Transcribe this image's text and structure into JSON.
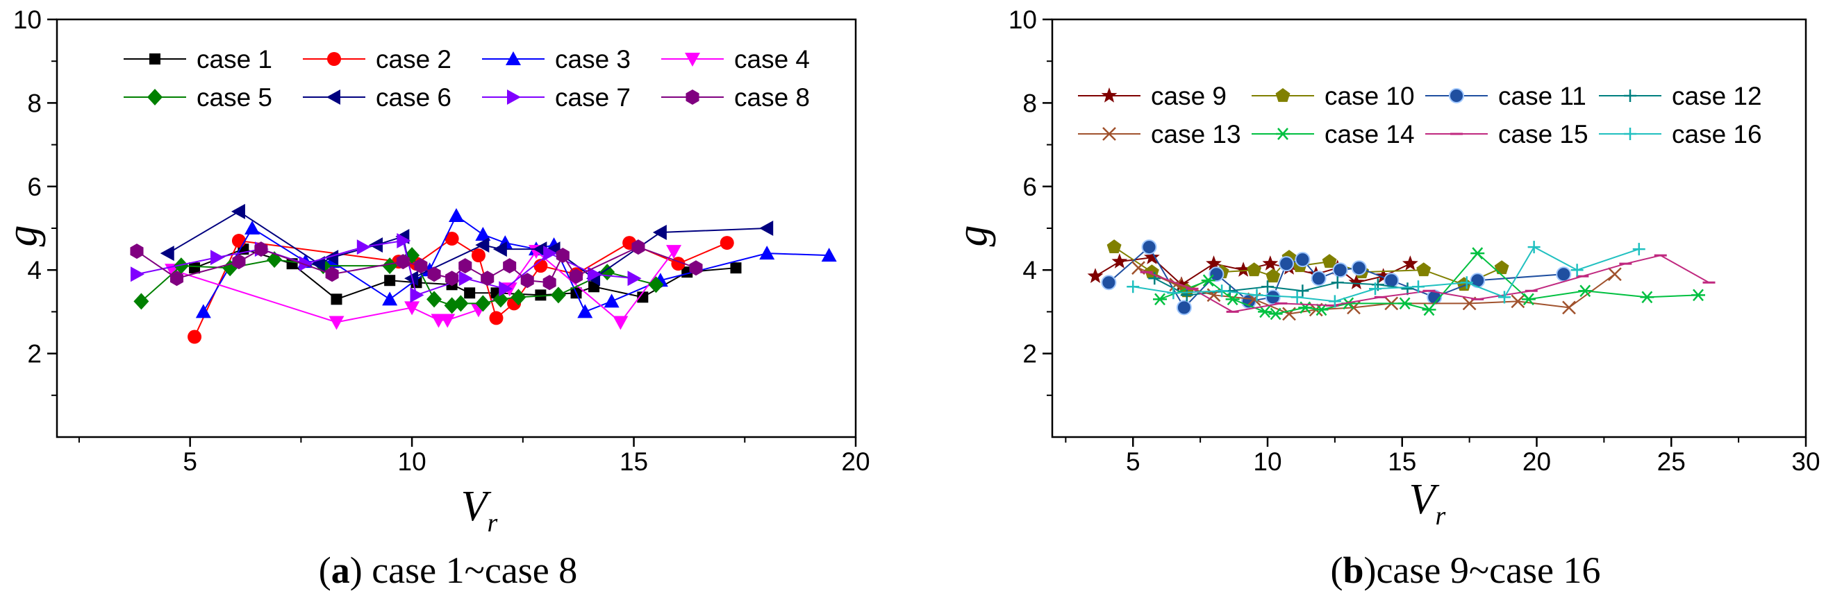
{
  "chart_data": [
    {
      "type": "line",
      "panel_label": "a",
      "caption": "case 1~case 8",
      "xlabel": "V",
      "xlabel_sub": "r",
      "ylabel": "g",
      "xlim": [
        2,
        20
      ],
      "ylim": [
        0,
        10
      ],
      "xticks": [
        5,
        10,
        15,
        20
      ],
      "yticks": [
        2,
        4,
        6,
        8,
        10
      ],
      "legend_position": "top",
      "legend_columns": 4,
      "series": [
        {
          "name": "case 1",
          "color": "#000000",
          "marker": "square",
          "x": [
            5.1,
            6.2,
            7.3,
            8.3,
            9.5,
            10.1,
            10.9,
            11.3,
            11.9,
            12.9,
            13.7,
            14.1,
            15.2,
            16.2,
            17.3
          ],
          "y": [
            4.05,
            4.5,
            4.15,
            3.3,
            3.75,
            3.7,
            3.65,
            3.45,
            3.45,
            3.4,
            3.45,
            3.6,
            3.35,
            3.95,
            4.05
          ]
        },
        {
          "name": "case 2",
          "color": "#ff0000",
          "marker": "circle",
          "x": [
            5.1,
            6.1,
            9.7,
            10.1,
            10.9,
            11.5,
            11.9,
            12.3,
            12.9,
            13.7,
            14.9,
            16.0,
            17.1
          ],
          "y": [
            2.4,
            4.7,
            4.2,
            4.15,
            4.75,
            4.35,
            2.85,
            3.2,
            4.1,
            3.9,
            4.65,
            4.15,
            4.65
          ]
        },
        {
          "name": "case 3",
          "color": "#0000ff",
          "marker": "triangle-up",
          "x": [
            5.3,
            6.4,
            7.6,
            8.2,
            9.5,
            10.4,
            11.0,
            11.6,
            12.1,
            12.8,
            13.2,
            13.9,
            14.5,
            15.6,
            18.0,
            19.4
          ],
          "y": [
            3.0,
            5.0,
            4.2,
            4.2,
            3.3,
            4.0,
            5.3,
            4.85,
            4.65,
            4.5,
            4.6,
            3.0,
            3.25,
            3.75,
            4.4,
            4.35
          ]
        },
        {
          "name": "case 4",
          "color": "#ff00ff",
          "marker": "triangle-down",
          "x": [
            4.6,
            8.3,
            10.0,
            10.6,
            10.8,
            11.5,
            12.2,
            12.8,
            14.7,
            15.9
          ],
          "y": [
            4.0,
            2.75,
            3.1,
            2.8,
            2.8,
            3.05,
            3.55,
            4.45,
            2.75,
            4.45
          ]
        },
        {
          "name": "case 5",
          "color": "#008000",
          "marker": "diamond",
          "x": [
            3.9,
            4.8,
            5.9,
            6.9,
            8.0,
            9.5,
            10.0,
            10.5,
            10.9,
            11.1,
            11.6,
            12.0,
            12.4,
            13.3,
            14.4,
            15.5
          ],
          "y": [
            3.25,
            4.1,
            4.05,
            4.25,
            4.1,
            4.1,
            4.35,
            3.3,
            3.15,
            3.2,
            3.2,
            3.3,
            3.35,
            3.4,
            3.95,
            3.65
          ]
        },
        {
          "name": "case 6",
          "color": "#00007f",
          "marker": "triangle-left",
          "x": [
            4.5,
            6.1,
            7.9,
            8.2,
            9.2,
            9.8,
            10.0,
            11.6,
            12.0,
            12.9,
            13.2,
            14.1,
            15.6,
            18.0
          ],
          "y": [
            4.4,
            5.4,
            4.15,
            4.3,
            4.6,
            4.8,
            3.8,
            4.6,
            4.5,
            4.5,
            4.5,
            3.8,
            4.9,
            5.0
          ]
        },
        {
          "name": "case 7",
          "color": "#8000ff",
          "marker": "triangle-right",
          "x": [
            3.8,
            5.6,
            6.6,
            7.6,
            8.9,
            9.8,
            10.1,
            11.2,
            12.1,
            13.1,
            14.1,
            15.0
          ],
          "y": [
            3.9,
            4.3,
            4.5,
            4.15,
            4.55,
            4.7,
            3.4,
            3.8,
            3.55,
            4.4,
            3.9,
            3.8
          ]
        },
        {
          "name": "case 8",
          "color": "#800080",
          "marker": "hexagon",
          "x": [
            3.8,
            4.7,
            6.1,
            6.6,
            8.2,
            9.8,
            10.2,
            10.5,
            10.9,
            11.2,
            11.7,
            12.2,
            12.6,
            13.1,
            13.4,
            13.7,
            15.1,
            16.4
          ],
          "y": [
            4.45,
            3.8,
            4.2,
            4.5,
            3.9,
            4.2,
            4.1,
            3.9,
            3.8,
            4.1,
            3.8,
            4.1,
            3.75,
            3.7,
            4.35,
            3.85,
            4.55,
            4.05
          ]
        }
      ]
    },
    {
      "type": "line",
      "panel_label": "b",
      "caption": "case 9~case 16",
      "xlabel": "V",
      "xlabel_sub": "r",
      "ylabel": "g",
      "xlim": [
        2,
        30
      ],
      "ylim": [
        0,
        10
      ],
      "xticks": [
        5,
        10,
        15,
        20,
        25,
        30
      ],
      "yticks": [
        2,
        4,
        6,
        8,
        10
      ],
      "legend_position": "top",
      "legend_columns": 4,
      "series": [
        {
          "name": "case 9",
          "color": "#7f0000",
          "marker": "star",
          "x": [
            3.6,
            4.5,
            5.7,
            6.8,
            8.0,
            9.1,
            10.1,
            10.8,
            11.8,
            12.6,
            13.3,
            14.3,
            15.3
          ],
          "y": [
            3.85,
            4.2,
            4.3,
            3.65,
            4.15,
            4.0,
            4.15,
            4.05,
            3.9,
            4.05,
            3.7,
            3.85,
            4.15
          ]
        },
        {
          "name": "case 10",
          "color": "#808000",
          "marker": "pentagon",
          "x": [
            4.3,
            5.7,
            7.0,
            8.3,
            9.5,
            10.2,
            10.8,
            11.2,
            12.3,
            13.5,
            15.8,
            17.3,
            18.7
          ],
          "y": [
            4.55,
            3.95,
            3.5,
            3.95,
            4.0,
            3.85,
            4.3,
            4.1,
            4.2,
            3.95,
            4.0,
            3.65,
            4.05
          ]
        },
        {
          "name": "case 11",
          "color": "#1f4fa0",
          "marker": "ball",
          "x": [
            4.1,
            5.6,
            6.9,
            8.1,
            9.3,
            10.2,
            10.7,
            11.3,
            11.9,
            12.7,
            13.4,
            14.6,
            16.2,
            17.8,
            21.0
          ],
          "y": [
            3.7,
            4.55,
            3.1,
            3.9,
            3.25,
            3.35,
            4.15,
            4.25,
            3.8,
            4.0,
            4.05,
            3.75,
            3.35,
            3.75,
            3.9
          ]
        },
        {
          "name": "case 12",
          "color": "#008080",
          "marker": "plus",
          "x": [
            5.8,
            7.0,
            8.6,
            10.0,
            11.3,
            12.6,
            14.1,
            15.2
          ],
          "y": [
            3.8,
            3.4,
            3.5,
            3.6,
            3.5,
            3.7,
            3.65,
            3.55
          ]
        },
        {
          "name": "case 13",
          "color": "#a0522d",
          "marker": "x",
          "x": [
            5.2,
            6.6,
            8.0,
            9.5,
            10.8,
            11.8,
            13.2,
            14.6,
            17.5,
            19.3,
            21.2,
            22.9
          ],
          "y": [
            4.05,
            3.65,
            3.4,
            3.3,
            2.95,
            3.05,
            3.1,
            3.2,
            3.2,
            3.25,
            3.1,
            3.9
          ]
        },
        {
          "name": "case 14",
          "color": "#00c040",
          "marker": "asterisk",
          "x": [
            6.0,
            7.8,
            8.7,
            9.9,
            10.3,
            11.4,
            12.0,
            13.0,
            15.1,
            16.0,
            17.8,
            19.7,
            21.8,
            24.1,
            26.0
          ],
          "y": [
            3.3,
            3.75,
            3.3,
            3.0,
            2.95,
            3.1,
            3.05,
            3.2,
            3.2,
            3.05,
            4.4,
            3.3,
            3.5,
            3.35,
            3.4
          ]
        },
        {
          "name": "case 15",
          "color": "#c0287f",
          "marker": "minus",
          "x": [
            5.5,
            7.2,
            8.7,
            10.5,
            12.4,
            14.2,
            16.0,
            17.8,
            19.8,
            21.7,
            23.3,
            24.6,
            26.4
          ],
          "y": [
            3.95,
            3.55,
            3.0,
            3.2,
            3.15,
            3.35,
            3.5,
            3.3,
            3.5,
            3.85,
            4.15,
            4.35,
            3.7
          ]
        },
        {
          "name": "case 16",
          "color": "#20c0c0",
          "marker": "plus",
          "x": [
            5.0,
            6.5,
            8.3,
            9.6,
            11.1,
            12.5,
            14.0,
            15.6,
            17.4,
            18.8,
            19.9,
            21.5,
            23.8
          ],
          "y": [
            3.6,
            3.45,
            3.5,
            3.4,
            3.35,
            3.25,
            3.55,
            3.6,
            3.7,
            3.35,
            4.55,
            4.0,
            4.5
          ]
        }
      ]
    }
  ]
}
